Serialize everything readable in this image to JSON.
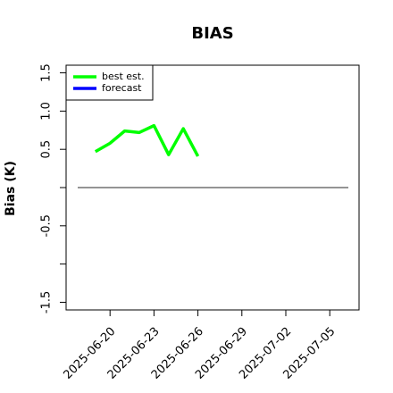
{
  "chart_data": {
    "type": "line",
    "title": "BIAS",
    "y_label": "Bias (K)",
    "x": [
      "2025-06-19",
      "2025-06-20",
      "2025-06-21",
      "2025-06-22",
      "2025-06-23",
      "2025-06-24",
      "2025-06-25",
      "2025-06-26"
    ],
    "series": [
      {
        "name": "best est.",
        "color": "#00ff00",
        "values": [
          0.47,
          0.58,
          0.74,
          0.72,
          0.81,
          0.43,
          0.77,
          0.41
        ]
      },
      {
        "name": "forecast",
        "color": "#0000ff",
        "values": [
          null,
          null,
          null,
          null,
          null,
          null,
          null,
          null
        ]
      }
    ],
    "xlim": [
      "2025-06-17",
      "2025-07-07"
    ],
    "xticks": [
      "2025-06-20",
      "2025-06-23",
      "2025-06-26",
      "2025-06-29",
      "2025-07-02",
      "2025-07-05"
    ],
    "highlight_xtick": 2,
    "highlight_color": "#228b22",
    "ylim": [
      -1.6,
      1.6
    ],
    "yticks": [
      -1.5,
      {
        "value": -1,
        "label": null
      },
      -0.5,
      {
        "value": 0,
        "label": null
      },
      0.5,
      {
        "value": 1,
        "label": "1.0"
      },
      1.5
    ],
    "zero_line": true,
    "legend": "upper left"
  }
}
